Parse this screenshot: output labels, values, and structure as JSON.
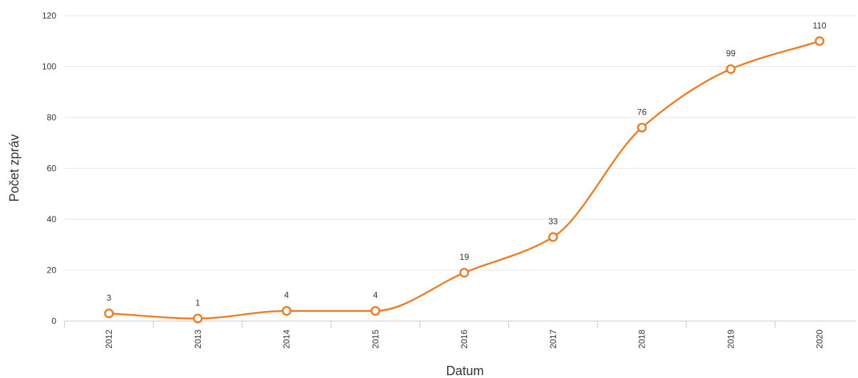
{
  "chart_data": {
    "type": "line",
    "title": "",
    "xlabel": "Datum",
    "ylabel": "Počet zpráv",
    "categories": [
      "2012",
      "2013",
      "2014",
      "2015",
      "2016",
      "2017",
      "2018",
      "2019",
      "2020"
    ],
    "series": [
      {
        "values": [
          3,
          1,
          4,
          4,
          19,
          33,
          76,
          99,
          110
        ]
      }
    ],
    "data_labels": [
      "3",
      "1",
      "4",
      "4",
      "19",
      "33",
      "76",
      "99",
      "110"
    ],
    "ylim": [
      0,
      120
    ],
    "yticks": [
      0,
      20,
      40,
      60,
      80,
      100,
      120
    ],
    "ytick_labels": [
      "0",
      "20",
      "40",
      "60",
      "80",
      "100",
      "120"
    ],
    "grid": true,
    "smooth": true,
    "legend": "none",
    "colors": {
      "series": "#f47a1f"
    }
  }
}
